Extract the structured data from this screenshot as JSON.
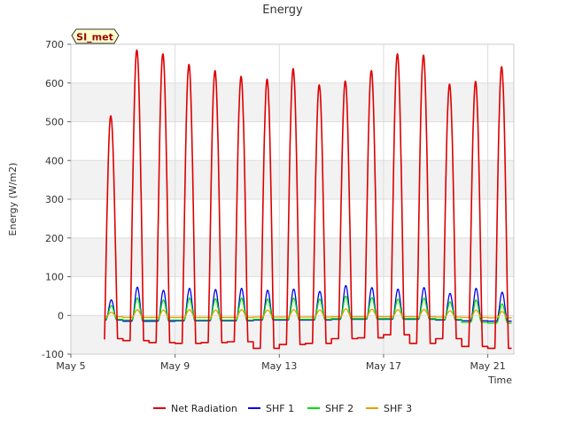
{
  "chart_data": {
    "type": "line",
    "title": "Energy",
    "xlabel": "Time",
    "ylabel": "Energy (W/m2)",
    "badge": "SI_met",
    "xlim": [
      "2024-05-05",
      "2024-05-22"
    ],
    "ylim": [
      -100,
      700
    ],
    "yticks": [
      -100,
      0,
      100,
      200,
      300,
      400,
      500,
      600,
      700
    ],
    "xticks": [
      {
        "date": "2024-05-05",
        "label": "May 5"
      },
      {
        "date": "2024-05-09",
        "label": "May 9"
      },
      {
        "date": "2024-05-13",
        "label": "May 13"
      },
      {
        "date": "2024-05-17",
        "label": "May 17"
      },
      {
        "date": "2024-05-21",
        "label": "May 21"
      }
    ],
    "grid": true,
    "legend_position": "bottom",
    "days": [
      "2024-05-05",
      "2024-05-06",
      "2024-05-07",
      "2024-05-08",
      "2024-05-09",
      "2024-05-10",
      "2024-05-11",
      "2024-05-12",
      "2024-05-13",
      "2024-05-14",
      "2024-05-15",
      "2024-05-16",
      "2024-05-17",
      "2024-05-18",
      "2024-05-19",
      "2024-05-20",
      "2024-05-21"
    ],
    "series": [
      {
        "name": "Net Radiation",
        "color": "#dd0000",
        "daily_peak": [
          515,
          685,
          675,
          648,
          632,
          617,
          610,
          637,
          595,
          605,
          632,
          675,
          672,
          597,
          604,
          642
        ],
        "night_min": [
          -60,
          -65,
          -70,
          -72,
          -70,
          -68,
          -85,
          -75,
          -72,
          -60,
          -58,
          -50,
          -72,
          -60,
          -80,
          -85
        ]
      },
      {
        "name": "SHF 1",
        "color": "#0000ee",
        "daily_peak": [
          40,
          73,
          65,
          70,
          67,
          70,
          65,
          68,
          62,
          77,
          72,
          68,
          72,
          57,
          70,
          60
        ],
        "night_min": [
          -12,
          -15,
          -15,
          -14,
          -14,
          -14,
          -12,
          -12,
          -12,
          -10,
          -10,
          -10,
          -10,
          -12,
          -14,
          -15
        ]
      },
      {
        "name": "SHF 2",
        "color": "#00dd00",
        "daily_peak": [
          25,
          45,
          40,
          45,
          43,
          45,
          42,
          45,
          42,
          50,
          46,
          42,
          45,
          35,
          40,
          30
        ],
        "night_min": [
          -10,
          -12,
          -12,
          -12,
          -12,
          -12,
          -10,
          -10,
          -10,
          -8,
          -8,
          -8,
          -8,
          -10,
          -18,
          -20
        ]
      },
      {
        "name": "SHF 3",
        "color": "#e6a000",
        "daily_peak": [
          8,
          15,
          14,
          15,
          14,
          15,
          14,
          15,
          14,
          17,
          16,
          15,
          16,
          12,
          14,
          10
        ],
        "night_min": [
          -3,
          -5,
          -5,
          -5,
          -5,
          -5,
          -4,
          -4,
          -4,
          -3,
          -3,
          -3,
          -3,
          -4,
          -5,
          -6
        ]
      }
    ]
  }
}
